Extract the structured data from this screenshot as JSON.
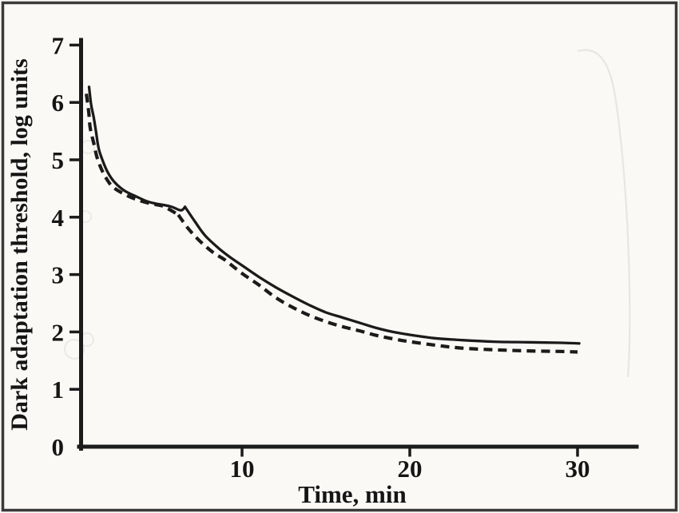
{
  "figure": {
    "kind": "scanned journal figure",
    "paper_color": "#faf9f6",
    "ink_color": "#1b1b1b",
    "border_color": "#3a3a3a"
  },
  "chart_data": {
    "type": "line",
    "title": "",
    "xlabel": "Time, min",
    "ylabel": "Dark adaptation threshold, log units",
    "xlim": [
      0,
      33.5
    ],
    "ylim": [
      0,
      7.05
    ],
    "x_ticks": [
      10,
      20,
      30
    ],
    "y_ticks": [
      0,
      1,
      2,
      3,
      4,
      5,
      6,
      7
    ],
    "grid": false,
    "legend": "none",
    "series": [
      {
        "name": "solid curve",
        "line_style": "solid",
        "color": "#1b1b1b",
        "rod_cone_break_min": 6.6,
        "final_threshold_log_units": 1.8,
        "points_cone_branch": [
          [
            0.88,
            6.27
          ],
          [
            1.0,
            5.97
          ],
          [
            1.15,
            5.75
          ],
          [
            1.3,
            5.48
          ],
          [
            1.45,
            5.2
          ],
          [
            1.7,
            4.98
          ],
          [
            2.0,
            4.78
          ],
          [
            2.4,
            4.61
          ],
          [
            3.0,
            4.46
          ],
          [
            3.7,
            4.36
          ],
          [
            4.5,
            4.26
          ],
          [
            5.7,
            4.19
          ],
          [
            6.35,
            4.12
          ],
          [
            6.6,
            4.18
          ]
        ],
        "points_rod_branch": [
          [
            6.6,
            4.18
          ],
          [
            7.2,
            3.92
          ],
          [
            7.8,
            3.68
          ],
          [
            8.6,
            3.46
          ],
          [
            9.3,
            3.3
          ],
          [
            10,
            3.16
          ],
          [
            11,
            2.96
          ],
          [
            12,
            2.78
          ],
          [
            13,
            2.62
          ],
          [
            14,
            2.47
          ],
          [
            15,
            2.34
          ],
          [
            16,
            2.25
          ],
          [
            17,
            2.16
          ],
          [
            18,
            2.07
          ],
          [
            19,
            2.0
          ],
          [
            20,
            1.95
          ],
          [
            21.5,
            1.89
          ],
          [
            23,
            1.86
          ],
          [
            25,
            1.83
          ],
          [
            27,
            1.82
          ],
          [
            29,
            1.81
          ],
          [
            30.1,
            1.8
          ]
        ]
      },
      {
        "name": "dashed curve",
        "line_style": "dashed",
        "color": "#1b1b1b",
        "rod_cone_break_min": 6.2,
        "final_threshold_log_units": 1.65,
        "points_cone_branch": [
          [
            0.72,
            6.15
          ],
          [
            0.86,
            5.83
          ],
          [
            0.95,
            5.55
          ],
          [
            1.15,
            5.3
          ],
          [
            1.35,
            5.05
          ],
          [
            1.6,
            4.85
          ],
          [
            1.9,
            4.68
          ],
          [
            2.25,
            4.54
          ],
          [
            2.8,
            4.43
          ],
          [
            3.6,
            4.32
          ],
          [
            4.5,
            4.24
          ],
          [
            5.2,
            4.2
          ],
          [
            5.7,
            4.13
          ],
          [
            6.2,
            4.04
          ]
        ],
        "points_rod_branch": [
          [
            6.2,
            4.04
          ],
          [
            6.8,
            3.8
          ],
          [
            7.5,
            3.58
          ],
          [
            8.3,
            3.38
          ],
          [
            9,
            3.25
          ],
          [
            10,
            3.02
          ],
          [
            11,
            2.82
          ],
          [
            12,
            2.6
          ],
          [
            13,
            2.43
          ],
          [
            14,
            2.29
          ],
          [
            15,
            2.18
          ],
          [
            16,
            2.09
          ],
          [
            17,
            2.02
          ],
          [
            18,
            1.94
          ],
          [
            19,
            1.88
          ],
          [
            20,
            1.83
          ],
          [
            21.5,
            1.77
          ],
          [
            23,
            1.72
          ],
          [
            25,
            1.69
          ],
          [
            27,
            1.67
          ],
          [
            29,
            1.66
          ],
          [
            30,
            1.65
          ]
        ]
      }
    ]
  }
}
